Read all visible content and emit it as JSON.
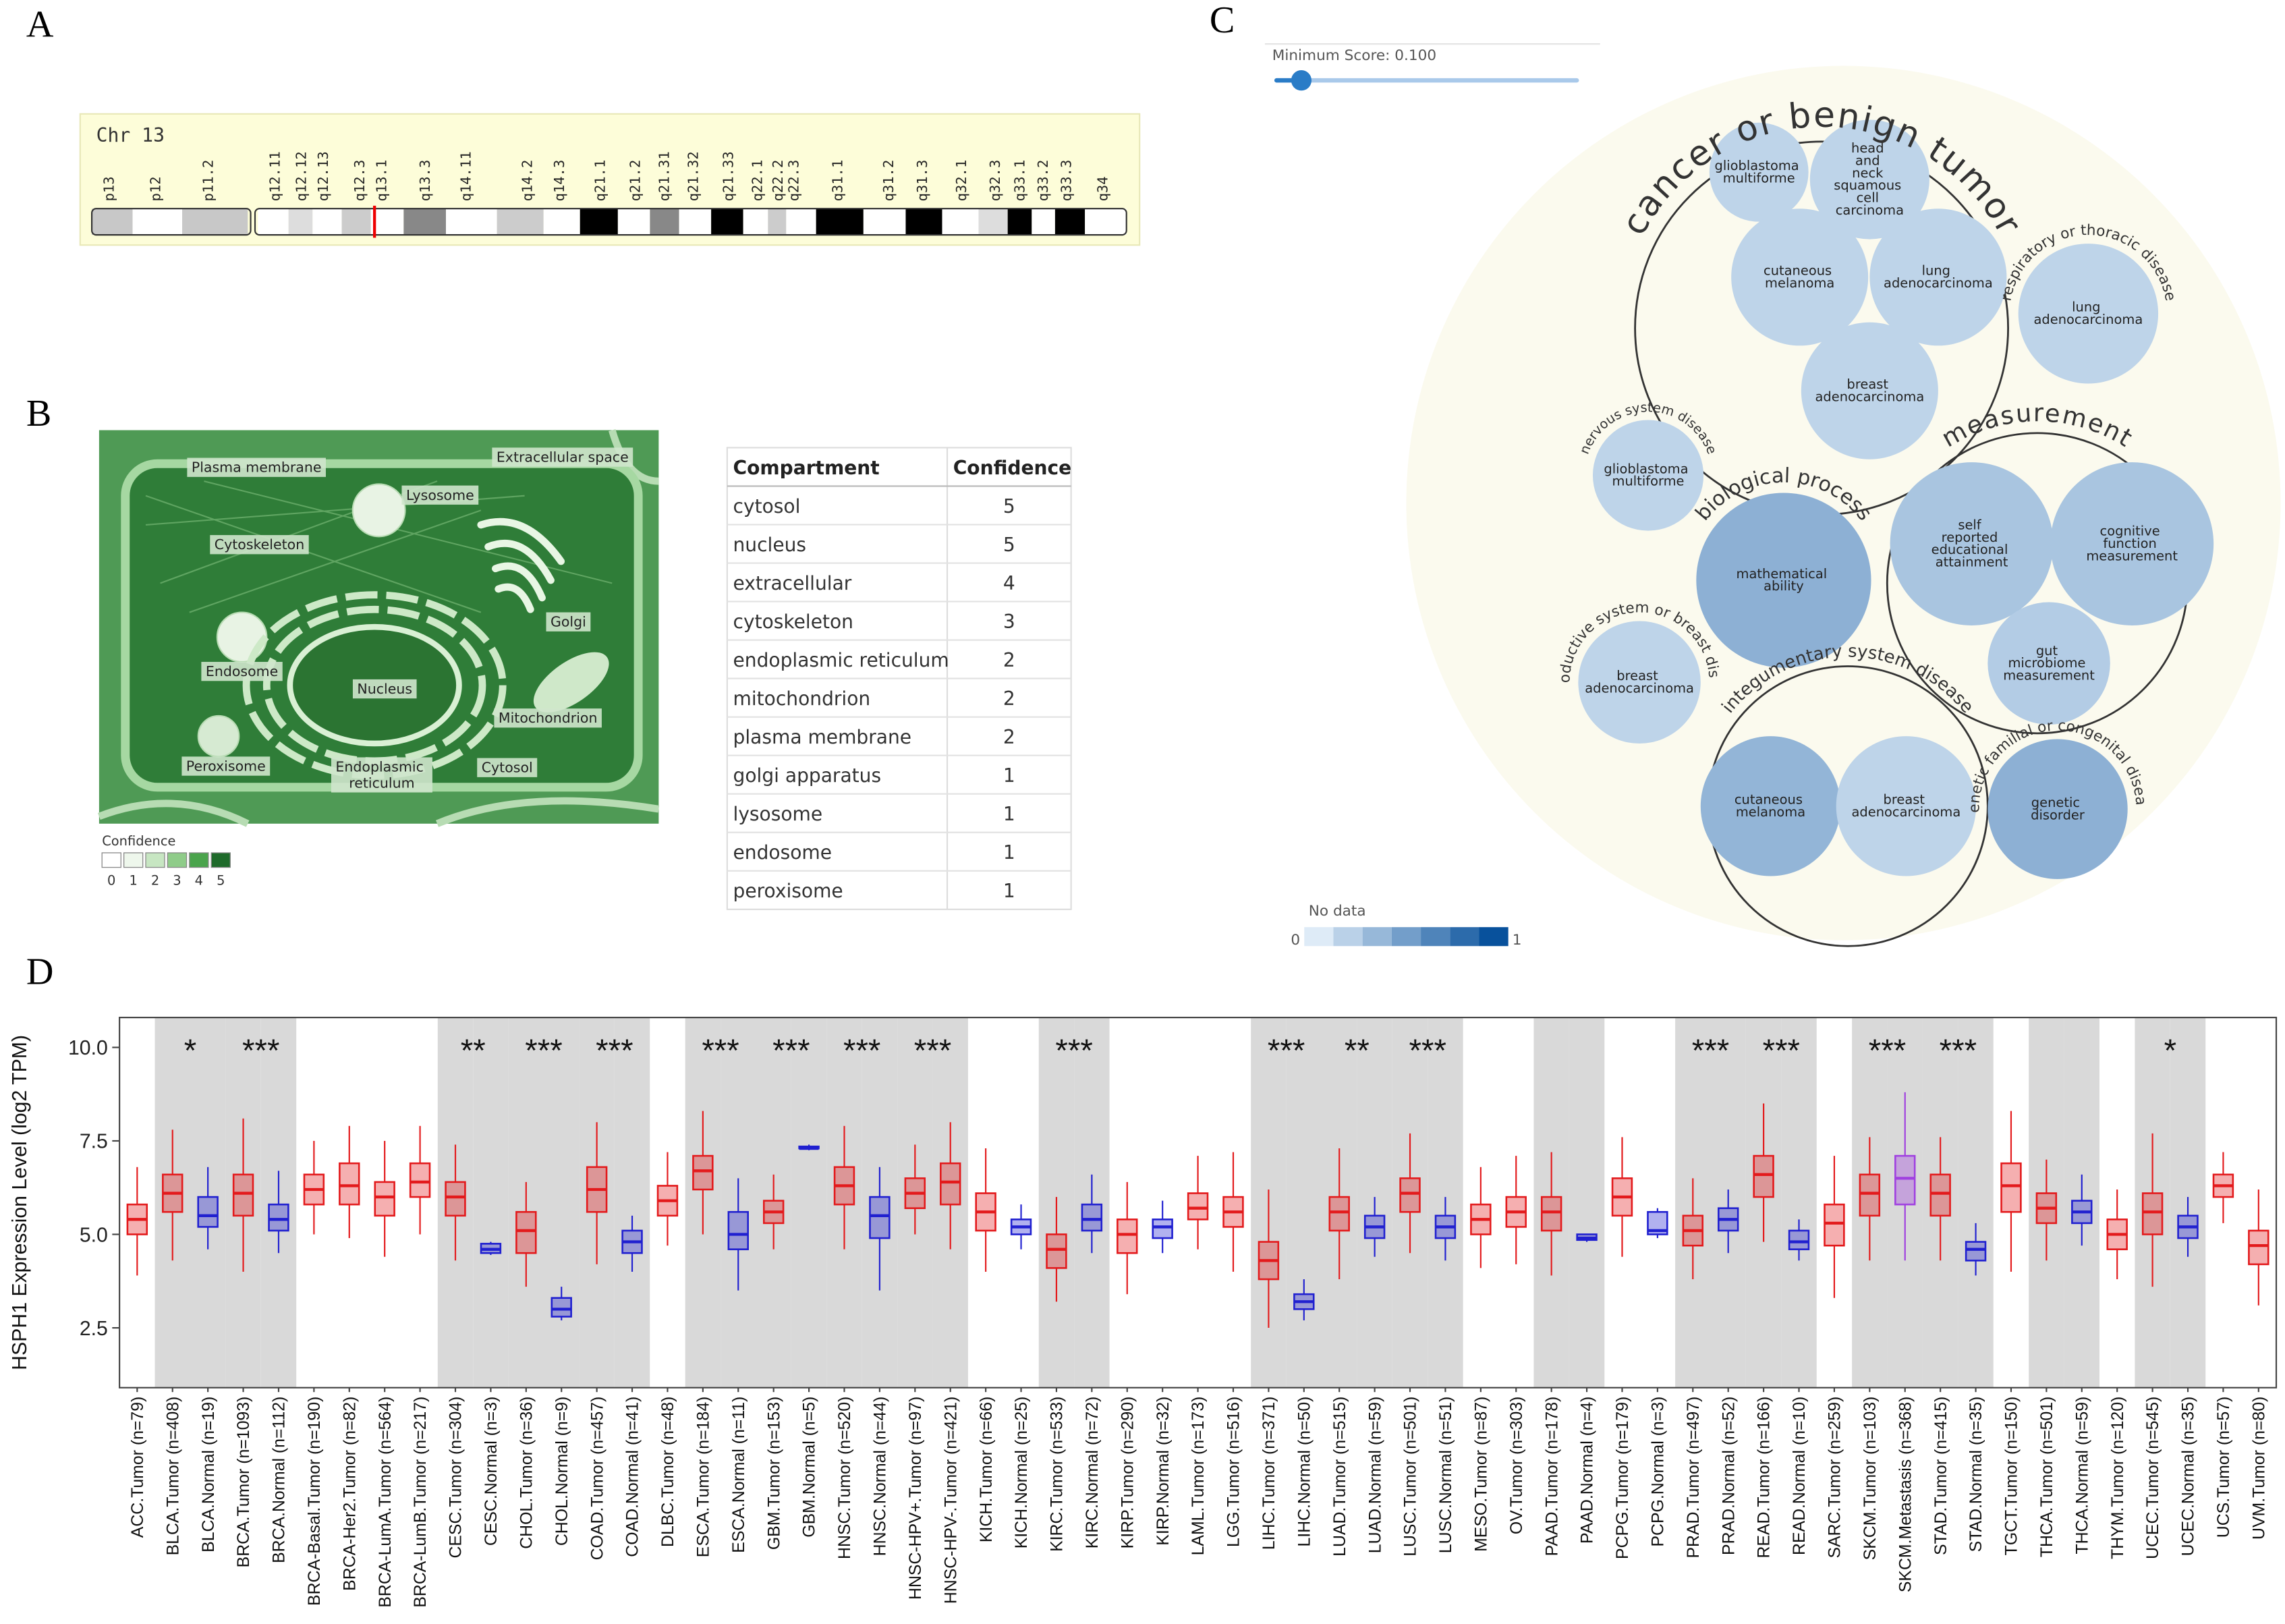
{
  "panel_labels": [
    "A",
    "B",
    "C",
    "D"
  ],
  "chromosome": {
    "title": "Chr 13",
    "bands": [
      "p13",
      "p12",
      "p11.2",
      "q12.11",
      "q12.12",
      "q12.13",
      "q12.3",
      "q13.1",
      "q13.3",
      "q14.11",
      "q14.2",
      "q14.3",
      "q21.1",
      "q21.2",
      "q21.31",
      "q21.32",
      "q21.33",
      "q22.1",
      "q22.2",
      "q22.3",
      "q31.1",
      "q31.2",
      "q31.3",
      "q32.1",
      "q32.3",
      "q33.1",
      "q33.2",
      "q33.3",
      "q34"
    ]
  },
  "cell": {
    "labels": [
      "Plasma membrane",
      "Lysosome",
      "Extracellular space",
      "Cytoskeleton",
      "Golgi",
      "Endosome",
      "Nucleus",
      "Mitochondrion",
      "Peroxisome",
      "Endoplasmic reticulum",
      "Cytosol"
    ],
    "legend_title": "Confidence",
    "legend_levels": [
      0,
      1,
      2,
      3,
      4,
      5
    ]
  },
  "table": {
    "header": [
      "Compartment",
      "Confidence"
    ],
    "rows": [
      [
        "cytosol",
        5
      ],
      [
        "nucleus",
        5
      ],
      [
        "extracellular",
        4
      ],
      [
        "cytoskeleton",
        3
      ],
      [
        "endoplasmic reticulum",
        2
      ],
      [
        "mitochondrion",
        2
      ],
      [
        "plasma membrane",
        2
      ],
      [
        "golgi apparatus",
        1
      ],
      [
        "lysosome",
        1
      ],
      [
        "endosome",
        1
      ],
      [
        "peroxisome",
        1
      ]
    ]
  },
  "network": {
    "slider_label": "Minimum Score: 0.100",
    "groups": [
      {
        "name": "cancer or benign tumor",
        "leaves": [
          {
            "name": "glioblastoma multiforme",
            "score": 0.15
          },
          {
            "name": "head and neck squamous cell carcinoma",
            "score": 0.15
          },
          {
            "name": "cutaneous melanoma",
            "score": 0.15
          },
          {
            "name": "lung adenocarcinoma",
            "score": 0.15
          },
          {
            "name": "breast adenocarcinoma",
            "score": 0.15
          }
        ]
      },
      {
        "name": "respiratory or thoracic disease",
        "leaves": [
          {
            "name": "lung adenocarcinoma",
            "score": 0.15
          }
        ]
      },
      {
        "name": "measurement",
        "leaves": [
          {
            "name": "self reported educational attainment",
            "score": 0.25
          },
          {
            "name": "cognitive function measurement",
            "score": 0.25
          },
          {
            "name": "gut microbiome measurement",
            "score": 0.2
          }
        ]
      },
      {
        "name": "nervous system disease",
        "leaves": [
          {
            "name": "glioblastoma multiforme",
            "score": 0.15
          }
        ]
      },
      {
        "name": "biological process",
        "leaves": [
          {
            "name": "mathematical ability",
            "score": 0.38
          }
        ]
      },
      {
        "name": "reproductive system or breast disease",
        "leaves": [
          {
            "name": "breast adenocarcinoma",
            "score": 0.15
          }
        ]
      },
      {
        "name": "integumentary system disease",
        "leaves": [
          {
            "name": "cutaneous melanoma",
            "score": 0.35
          },
          {
            "name": "breast adenocarcinoma",
            "score": 0.15
          }
        ]
      },
      {
        "name": "genetic familial or congenital disease",
        "leaves": [
          {
            "name": "genetic disorder",
            "score": 0.38
          }
        ]
      }
    ],
    "legend_label": "No data",
    "legend_min": 0,
    "legend_max": 1
  },
  "chart_data": {
    "type": "box",
    "y_label": "HSPH1 Expression Level (log2 TPM)",
    "categories": [
      "ACC.Tumor (n=79)",
      "BLCA.Tumor (n=408)",
      "BLCA.Normal (n=19)",
      "BRCA.Tumor (n=1093)",
      "BRCA.Normal (n=112)",
      "BRCA-Basal.Tumor (n=190)",
      "BRCA-Her2.Tumor (n=82)",
      "BRCA-LumA.Tumor (n=564)",
      "BRCA-LumB.Tumor (n=217)",
      "CESC.Tumor (n=304)",
      "CESC.Normal (n=3)",
      "CHOL.Tumor (n=36)",
      "CHOL.Normal (n=9)",
      "COAD.Tumor (n=457)",
      "COAD.Normal (n=41)",
      "DLBC.Tumor (n=48)",
      "ESCA.Tumor (n=184)",
      "ESCA.Normal (n=11)",
      "GBM.Tumor (n=153)",
      "GBM.Normal (n=5)",
      "HNSC.Tumor (n=520)",
      "HNSC.Normal (n=44)",
      "HNSC-HPV+.Tumor (n=97)",
      "HNSC-HPV-.Tumor (n=421)",
      "KICH.Tumor (n=66)",
      "KICH.Normal (n=25)",
      "KIRC.Tumor (n=533)",
      "KIRC.Normal (n=72)",
      "KIRP.Tumor (n=290)",
      "KIRP.Normal (n=32)",
      "LAML.Tumor (n=173)",
      "LGG.Tumor (n=516)",
      "LIHC.Tumor (n=371)",
      "LIHC.Normal (n=50)",
      "LUAD.Tumor (n=515)",
      "LUAD.Normal (n=59)",
      "LUSC.Tumor (n=501)",
      "LUSC.Normal (n=51)",
      "MESO.Tumor (n=87)",
      "OV.Tumor (n=303)",
      "PAAD.Tumor (n=178)",
      "PAAD.Normal (n=4)",
      "PCPG.Tumor (n=179)",
      "PCPG.Normal (n=3)",
      "PRAD.Tumor (n=497)",
      "PRAD.Normal (n=52)",
      "READ.Tumor (n=166)",
      "READ.Normal (n=10)",
      "SARC.Tumor (n=259)",
      "SKCM.Tumor (n=103)",
      "SKCM.Metastasis (n=368)",
      "STAD.Tumor (n=415)",
      "STAD.Normal (n=35)",
      "TGCT.Tumor (n=150)",
      "THCA.Tumor (n=501)",
      "THCA.Normal (n=59)",
      "THYM.Tumor (n=120)",
      "UCEC.Tumor (n=545)",
      "UCEC.Normal (n=35)",
      "UCS.Tumor (n=57)",
      "UVM.Tumor (n=80)"
    ],
    "low": [
      3.9,
      4.3,
      4.6,
      4.0,
      4.5,
      5.0,
      4.9,
      4.4,
      5.0,
      4.3,
      4.45,
      3.6,
      2.7,
      4.2,
      4.0,
      4.7,
      5.0,
      3.5,
      4.6,
      7.25,
      4.6,
      3.5,
      5.0,
      4.6,
      4.0,
      4.6,
      3.2,
      4.5,
      3.4,
      4.5,
      4.6,
      4.0,
      2.5,
      2.7,
      3.8,
      4.4,
      4.5,
      4.3,
      4.1,
      4.2,
      3.9,
      4.8,
      4.4,
      4.9,
      3.8,
      4.5,
      4.8,
      4.3,
      3.3,
      4.3,
      4.3,
      4.3,
      3.9,
      4.0,
      4.3,
      4.7,
      3.8,
      3.6,
      4.4,
      5.3,
      3.1
    ],
    "q1": [
      5.0,
      5.6,
      5.2,
      5.5,
      5.1,
      5.8,
      5.8,
      5.5,
      6.0,
      5.5,
      4.5,
      4.5,
      2.8,
      5.6,
      4.5,
      5.5,
      6.2,
      4.6,
      5.3,
      7.3,
      5.8,
      4.9,
      5.7,
      5.8,
      5.1,
      5.0,
      4.1,
      5.1,
      4.5,
      4.9,
      5.4,
      5.2,
      3.8,
      3.0,
      5.1,
      4.9,
      5.6,
      4.9,
      5.0,
      5.2,
      5.1,
      4.85,
      5.5,
      5.0,
      4.7,
      5.1,
      6.0,
      4.6,
      4.7,
      5.5,
      5.8,
      5.5,
      4.3,
      5.6,
      5.3,
      5.3,
      4.6,
      5.0,
      4.9,
      6.0,
      4.2
    ],
    "median": [
      5.4,
      6.1,
      5.5,
      6.1,
      5.4,
      6.2,
      6.3,
      6.0,
      6.4,
      6.0,
      4.6,
      5.1,
      3.0,
      6.2,
      4.8,
      5.9,
      6.7,
      5.0,
      5.6,
      7.3,
      6.3,
      5.5,
      6.1,
      6.4,
      5.6,
      5.2,
      4.6,
      5.4,
      5.0,
      5.2,
      5.7,
      5.6,
      4.3,
      3.2,
      5.6,
      5.2,
      6.1,
      5.2,
      5.4,
      5.6,
      5.6,
      4.9,
      6.0,
      5.1,
      5.1,
      5.4,
      6.6,
      4.8,
      5.3,
      6.1,
      6.5,
      6.1,
      4.6,
      6.3,
      5.7,
      5.6,
      5.0,
      5.6,
      5.2,
      6.3,
      4.7
    ],
    "q3": [
      5.8,
      6.6,
      6.0,
      6.6,
      5.8,
      6.6,
      6.9,
      6.4,
      6.9,
      6.4,
      4.75,
      5.6,
      3.3,
      6.8,
      5.1,
      6.3,
      7.1,
      5.6,
      5.9,
      7.35,
      6.8,
      6.0,
      6.5,
      6.9,
      6.1,
      5.4,
      5.0,
      5.8,
      5.4,
      5.4,
      6.1,
      6.0,
      4.8,
      3.4,
      6.0,
      5.5,
      6.5,
      5.5,
      5.8,
      6.0,
      6.0,
      5.0,
      6.5,
      5.6,
      5.5,
      5.7,
      7.1,
      5.1,
      5.8,
      6.6,
      7.1,
      6.6,
      4.8,
      6.9,
      6.1,
      5.9,
      5.4,
      6.1,
      5.5,
      6.6,
      5.1
    ],
    "high": [
      6.8,
      7.8,
      6.8,
      8.1,
      6.7,
      7.5,
      7.9,
      7.5,
      7.9,
      7.4,
      4.8,
      6.4,
      3.6,
      8.0,
      5.5,
      7.2,
      8.3,
      6.5,
      6.6,
      7.4,
      7.9,
      6.8,
      7.4,
      8.0,
      7.3,
      5.8,
      6.0,
      6.6,
      6.4,
      5.9,
      7.1,
      7.2,
      6.2,
      3.8,
      7.3,
      6.0,
      7.7,
      6.0,
      6.8,
      7.1,
      7.2,
      5.0,
      7.6,
      5.7,
      6.5,
      6.2,
      8.5,
      5.4,
      7.1,
      7.6,
      8.8,
      7.6,
      5.3,
      8.3,
      7.0,
      6.6,
      6.2,
      7.7,
      6.0,
      7.2,
      6.2
    ],
    "colors": [
      "#e31a1c",
      "#e31a1c",
      "#2020d0",
      "#e31a1c",
      "#2020d0",
      "#e31a1c",
      "#e31a1c",
      "#e31a1c",
      "#e31a1c",
      "#e31a1c",
      "#2020d0",
      "#e31a1c",
      "#2020d0",
      "#e31a1c",
      "#2020d0",
      "#e31a1c",
      "#e31a1c",
      "#2020d0",
      "#e31a1c",
      "#2020d0",
      "#e31a1c",
      "#2020d0",
      "#e31a1c",
      "#e31a1c",
      "#e31a1c",
      "#2020d0",
      "#e31a1c",
      "#2020d0",
      "#e31a1c",
      "#2020d0",
      "#e31a1c",
      "#e31a1c",
      "#e31a1c",
      "#2020d0",
      "#e31a1c",
      "#2020d0",
      "#e31a1c",
      "#2020d0",
      "#e31a1c",
      "#e31a1c",
      "#e31a1c",
      "#2020d0",
      "#e31a1c",
      "#2020d0",
      "#e31a1c",
      "#2020d0",
      "#e31a1c",
      "#2020d0",
      "#e31a1c",
      "#e31a1c",
      "#a040e0",
      "#e31a1c",
      "#2020d0",
      "#e31a1c",
      "#e31a1c",
      "#2020d0",
      "#e31a1c",
      "#e31a1c",
      "#2020d0",
      "#e31a1c",
      "#e31a1c"
    ],
    "significance": [
      null,
      "*",
      null,
      "***",
      null,
      null,
      null,
      null,
      null,
      "**",
      null,
      "***",
      null,
      "***",
      null,
      null,
      "***",
      null,
      "***",
      null,
      "***",
      null,
      "***",
      null,
      null,
      null,
      "***",
      null,
      null,
      null,
      null,
      null,
      "***",
      null,
      "**",
      null,
      "***",
      null,
      null,
      null,
      null,
      null,
      null,
      null,
      "***",
      null,
      "***",
      null,
      null,
      "***",
      null,
      "***",
      null,
      null,
      null,
      null,
      null,
      "*",
      null,
      null,
      null
    ],
    "shaded": [
      false,
      true,
      true,
      true,
      true,
      false,
      false,
      false,
      false,
      true,
      true,
      true,
      true,
      true,
      true,
      false,
      true,
      true,
      true,
      true,
      true,
      true,
      true,
      true,
      false,
      false,
      true,
      true,
      false,
      false,
      false,
      false,
      true,
      true,
      true,
      true,
      true,
      true,
      false,
      false,
      true,
      true,
      false,
      false,
      true,
      true,
      true,
      true,
      false,
      true,
      true,
      true,
      true,
      false,
      true,
      true,
      false,
      true,
      true,
      false,
      false
    ],
    "ylim": [
      0.9,
      10.8
    ],
    "yticks": [
      2.5,
      {
        "value": 5,
        "label": "5.0"
      },
      7.5,
      {
        "value": 10,
        "label": "10.0"
      }
    ]
  }
}
